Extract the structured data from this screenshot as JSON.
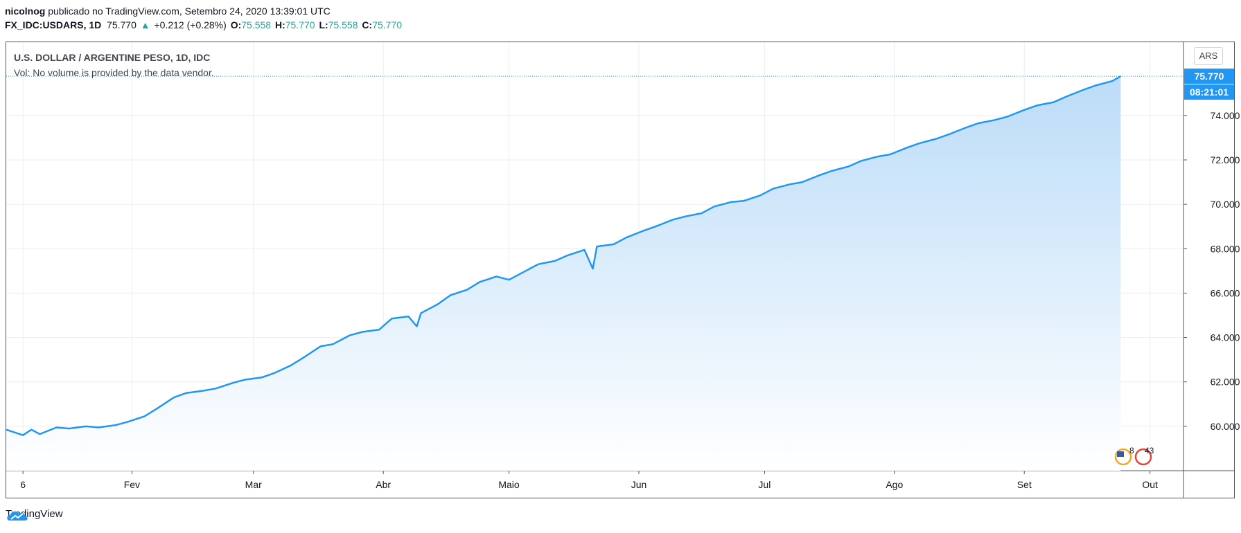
{
  "header": {
    "line1_user": "nicolnog",
    "line1_rest": " publicado no TradingView.com, Setembro 24, 2020 13:39:01 UTC",
    "symbol": "FX_IDC:USDARS, 1D",
    "last": "75.770",
    "change": "+0.212 (+0.28%)",
    "o_label": "O:",
    "o_val": "75.558",
    "h_label": "H:",
    "h_val": "75.770",
    "l_label": "L:",
    "l_val": "75.558",
    "c_label": "C:",
    "c_val": "75.770"
  },
  "legend": {
    "title": "U.S. DOLLAR / ARGENTINE PESO, 1D, IDC",
    "vol": "Vol: No volume is provided by the data vendor."
  },
  "currency_button": "ARS",
  "price_label": "75.770",
  "countdown_label": "08:21:01",
  "event_markers": [
    "8",
    "43"
  ],
  "footer": {
    "brand": "TradingView"
  },
  "colors": {
    "line": "#2196f3",
    "fill_top": "#bbdcf8",
    "fill_bottom": "#ffffff",
    "price_tag": "#2196f3",
    "grid": "#e8eef4"
  },
  "chart_data": {
    "type": "area",
    "ylim": [
      58.0,
      77.3
    ],
    "yticks": [
      60,
      62,
      64,
      66,
      68,
      70,
      72,
      74
    ],
    "ytick_labels": [
      "60.000",
      "62.000",
      "64.000",
      "66.000",
      "68.000",
      "70.000",
      "72.000",
      "74.000"
    ],
    "xticks": [
      {
        "date": "2020-01-06",
        "label": "6"
      },
      {
        "date": "2020-02-01",
        "label": "Fev"
      },
      {
        "date": "2020-03-01",
        "label": "Mar"
      },
      {
        "date": "2020-04-01",
        "label": "Abr"
      },
      {
        "date": "2020-05-01",
        "label": "Maio"
      },
      {
        "date": "2020-06-01",
        "label": "Jun"
      },
      {
        "date": "2020-07-01",
        "label": "Jul"
      },
      {
        "date": "2020-08-01",
        "label": "Ago"
      },
      {
        "date": "2020-09-01",
        "label": "Set"
      },
      {
        "date": "2020-10-01",
        "label": "Out"
      }
    ],
    "xlim": [
      "2020-01-02",
      "2020-10-09"
    ],
    "series": [
      {
        "x": [
          "2020-01-02",
          "2020-01-06",
          "2020-01-08",
          "2020-01-10",
          "2020-01-14",
          "2020-01-17",
          "2020-01-21",
          "2020-01-24",
          "2020-01-28",
          "2020-01-31",
          "2020-02-04",
          "2020-02-07",
          "2020-02-11",
          "2020-02-14",
          "2020-02-18",
          "2020-02-21",
          "2020-02-25",
          "2020-02-28",
          "2020-03-03",
          "2020-03-06",
          "2020-03-10",
          "2020-03-13",
          "2020-03-17",
          "2020-03-20",
          "2020-03-24",
          "2020-03-27",
          "2020-03-31",
          "2020-04-03",
          "2020-04-07",
          "2020-04-09",
          "2020-04-10",
          "2020-04-14",
          "2020-04-17",
          "2020-04-21",
          "2020-04-24",
          "2020-04-28",
          "2020-05-01",
          "2020-05-05",
          "2020-05-08",
          "2020-05-12",
          "2020-05-15",
          "2020-05-19",
          "2020-05-21",
          "2020-05-22",
          "2020-05-26",
          "2020-05-29",
          "2020-06-02",
          "2020-06-05",
          "2020-06-09",
          "2020-06-12",
          "2020-06-16",
          "2020-06-19",
          "2020-06-23",
          "2020-06-26",
          "2020-06-30",
          "2020-07-03",
          "2020-07-07",
          "2020-07-10",
          "2020-07-14",
          "2020-07-17",
          "2020-07-21",
          "2020-07-24",
          "2020-07-28",
          "2020-07-31",
          "2020-08-04",
          "2020-08-07",
          "2020-08-11",
          "2020-08-14",
          "2020-08-18",
          "2020-08-21",
          "2020-08-25",
          "2020-08-28",
          "2020-09-01",
          "2020-09-04",
          "2020-09-08",
          "2020-09-11",
          "2020-09-15",
          "2020-09-18",
          "2020-09-22",
          "2020-09-24"
        ],
        "values": [
          59.85,
          59.6,
          59.85,
          59.65,
          59.95,
          59.9,
          60.0,
          59.95,
          60.05,
          60.2,
          60.45,
          60.8,
          61.3,
          61.5,
          61.6,
          61.7,
          61.95,
          62.1,
          62.2,
          62.4,
          62.75,
          63.1,
          63.6,
          63.7,
          64.1,
          64.25,
          64.35,
          64.85,
          64.95,
          64.5,
          65.1,
          65.5,
          65.9,
          66.15,
          66.5,
          66.75,
          66.6,
          67.0,
          67.3,
          67.45,
          67.7,
          67.95,
          67.1,
          68.1,
          68.2,
          68.5,
          68.8,
          69.0,
          69.3,
          69.45,
          69.6,
          69.9,
          70.1,
          70.15,
          70.4,
          70.7,
          70.9,
          71.0,
          71.3,
          71.5,
          71.7,
          71.95,
          72.15,
          72.25,
          72.55,
          72.75,
          72.95,
          73.15,
          73.45,
          73.65,
          73.8,
          73.95,
          74.25,
          74.45,
          74.6,
          74.85,
          75.15,
          75.35,
          75.55,
          75.77
        ]
      }
    ]
  }
}
